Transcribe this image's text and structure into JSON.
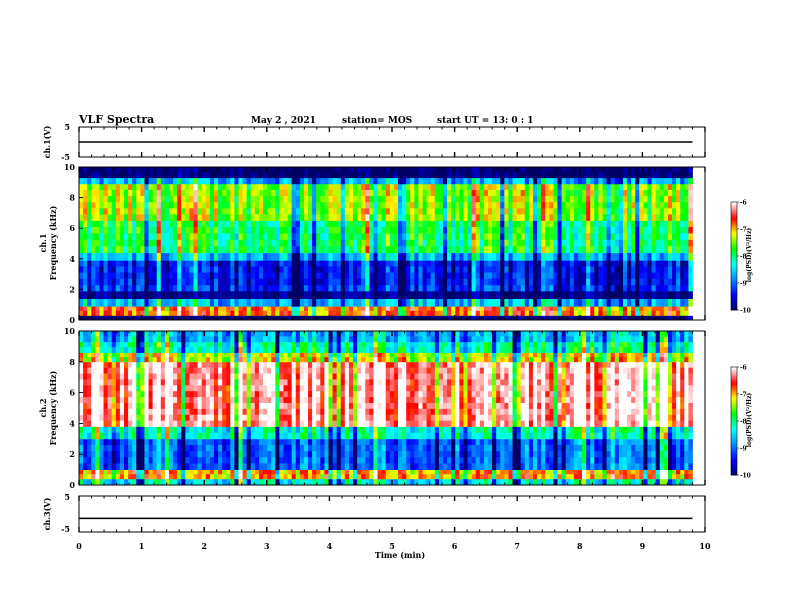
{
  "header": {
    "title": "VLF Spectra",
    "date": "May 2 , 2021",
    "station": "station= MOS",
    "start": "start UT = 13: 0 : 1"
  },
  "chart_data": [
    {
      "id": "ch1-waveform",
      "type": "line",
      "ylabel": "ch.1(V)",
      "ylim": [
        -5,
        5
      ],
      "yticks": [
        "5",
        "-5"
      ],
      "xlim": [
        0,
        10
      ],
      "series": [
        {
          "x": [
            0,
            9.8
          ],
          "y": [
            0,
            0
          ]
        }
      ]
    },
    {
      "id": "ch1-spectrogram",
      "type": "heatmap",
      "ylabel_lines": [
        "ch.1",
        "Frequency (kHz)"
      ],
      "ylim": [
        0,
        10
      ],
      "yticks": [
        "0",
        "2",
        "4",
        "6",
        "8",
        "10"
      ],
      "xlim": [
        0,
        10
      ],
      "data_end_min": 9.8,
      "colorbar": {
        "label": "log(PSD)(V²/Hz)",
        "range": [
          -10,
          -6
        ],
        "ticks": [
          "-6",
          "-7",
          "-8",
          "-9",
          "-10"
        ]
      },
      "bands": [
        {
          "from_khz": 0.0,
          "to_khz": 0.3,
          "level": -10
        },
        {
          "from_khz": 0.3,
          "to_khz": 0.9,
          "level": -6.8
        },
        {
          "from_khz": 0.9,
          "to_khz": 1.4,
          "level": -8.6
        },
        {
          "from_khz": 1.4,
          "to_khz": 1.9,
          "level": -9.9
        },
        {
          "from_khz": 1.9,
          "to_khz": 2.3,
          "level": -9.3
        },
        {
          "from_khz": 2.3,
          "to_khz": 3.9,
          "level": -9.4
        },
        {
          "from_khz": 3.9,
          "to_khz": 4.4,
          "level": -8.6
        },
        {
          "from_khz": 4.4,
          "to_khz": 6.5,
          "level": -7.9
        },
        {
          "from_khz": 6.5,
          "to_khz": 8.9,
          "level": -7.4
        },
        {
          "from_khz": 8.9,
          "to_khz": 9.3,
          "level": -8.7
        },
        {
          "from_khz": 9.3,
          "to_khz": 10.0,
          "level": -10
        }
      ]
    },
    {
      "id": "ch2-spectrogram",
      "type": "heatmap",
      "ylabel_lines": [
        "ch.2",
        "Frequency (kHz)"
      ],
      "ylim": [
        0,
        10
      ],
      "yticks": [
        "0",
        "2",
        "4",
        "6",
        "8",
        "10"
      ],
      "xlim": [
        0,
        10
      ],
      "data_end_min": 9.8,
      "colorbar": {
        "label": "log(PSD)(V²/Hz)",
        "range": [
          -10,
          -6
        ],
        "ticks": [
          "-6",
          "-7",
          "-8",
          "-9",
          "-10"
        ]
      },
      "bands": [
        {
          "from_khz": 0.0,
          "to_khz": 0.4,
          "level": -8.3
        },
        {
          "from_khz": 0.4,
          "to_khz": 1.0,
          "level": -6.9
        },
        {
          "from_khz": 1.0,
          "to_khz": 3.0,
          "level": -9.0
        },
        {
          "from_khz": 3.0,
          "to_khz": 3.8,
          "level": -8.2
        },
        {
          "from_khz": 3.8,
          "to_khz": 8.0,
          "level": -6.2
        },
        {
          "from_khz": 8.0,
          "to_khz": 8.6,
          "level": -7.2
        },
        {
          "from_khz": 8.6,
          "to_khz": 9.3,
          "level": -8.1
        },
        {
          "from_khz": 9.3,
          "to_khz": 10.0,
          "level": -8.6
        }
      ]
    },
    {
      "id": "ch3-waveform",
      "type": "line",
      "ylabel": "ch.3(V)",
      "ylim": [
        -5,
        5
      ],
      "yticks": [
        "5",
        "-5"
      ],
      "xlim": [
        0,
        10
      ],
      "xlabel": "Time (min)",
      "xticks": [
        "0",
        "1",
        "2",
        "3",
        "4",
        "5",
        "6",
        "7",
        "8",
        "9",
        "10"
      ],
      "series": [
        {
          "x": [
            0,
            9.8
          ],
          "y": [
            -1.3,
            -1.3
          ]
        }
      ]
    }
  ],
  "colors": {
    "palette": [
      "#000066",
      "#0000ff",
      "#0088ff",
      "#00ffff",
      "#00ff00",
      "#ffff00",
      "#ff0000",
      "#ffffff"
    ]
  }
}
